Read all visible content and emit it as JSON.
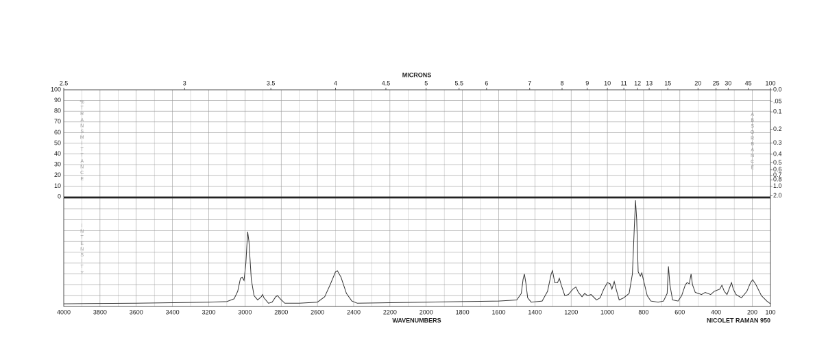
{
  "chart_data": {
    "type": "line",
    "top_axis_label": "MICRONS",
    "x_label": "WAVENUMBERS",
    "instrument": "NICOLET RAMAN 950",
    "left_label": "%TRANSMITTANCE",
    "right_label": "ABSORBANCE",
    "lower_label": "INTENSITY",
    "xlim": [
      4000,
      100
    ],
    "xticks": [
      4000,
      3800,
      3600,
      3400,
      3200,
      3000,
      2800,
      2600,
      2400,
      2200,
      2000,
      1800,
      1600,
      1400,
      1200,
      1000,
      800,
      600,
      400,
      200,
      100
    ],
    "micron_ticks": [
      2.5,
      3,
      3.5,
      4,
      4.5,
      5,
      5.5,
      6,
      7,
      8,
      9,
      10,
      11,
      12,
      13,
      15,
      20,
      25,
      30,
      45,
      100
    ],
    "ylim": [
      0,
      100
    ],
    "yticks": [
      100,
      90,
      80,
      70,
      60,
      50,
      40,
      30,
      20,
      10,
      0
    ],
    "absorbance_ticks": [
      {
        "value": 0,
        "label": "0.0"
      },
      {
        "value": 0.05,
        "label": ".05"
      },
      0.1,
      0.2,
      0.3,
      0.4,
      0.5,
      0.6,
      0.7,
      0.8,
      {
        "value": 1,
        "label": "1.0"
      },
      {
        "value": 2,
        "label": "2.0"
      }
    ],
    "intensity_lim": [
      0,
      100
    ],
    "intensity_grid": [
      0,
      10,
      20,
      30,
      40,
      50,
      60,
      70,
      80,
      90,
      100
    ],
    "grid": true,
    "color": "#333333",
    "x": [
      4000,
      3800,
      3600,
      3400,
      3200,
      3100,
      3060,
      3040,
      3025,
      3015,
      3005,
      2995,
      2985,
      2978,
      2965,
      2950,
      2930,
      2910,
      2903,
      2895,
      2870,
      2850,
      2830,
      2820,
      2805,
      2780,
      2700,
      2600,
      2560,
      2530,
      2500,
      2490,
      2470,
      2440,
      2410,
      2380,
      2200,
      2000,
      1800,
      1600,
      1500,
      1475,
      1465,
      1458,
      1450,
      1440,
      1420,
      1360,
      1330,
      1310,
      1303,
      1290,
      1275,
      1265,
      1255,
      1235,
      1215,
      1190,
      1174,
      1160,
      1140,
      1125,
      1110,
      1090,
      1060,
      1040,
      1020,
      1000,
      985,
      975,
      962,
      950,
      935,
      910,
      880,
      862,
      852,
      845,
      838,
      830,
      818,
      810,
      800,
      780,
      760,
      720,
      690,
      670,
      663,
      655,
      640,
      610,
      590,
      570,
      560,
      548,
      538,
      530,
      515,
      480,
      460,
      430,
      410,
      380,
      368,
      355,
      340,
      315,
      305,
      290,
      260,
      230,
      210,
      198,
      180,
      150,
      120,
      100
    ],
    "values": [
      2.5,
      2.8,
      3,
      3.5,
      4,
      4.5,
      7,
      14,
      26,
      27,
      24,
      40,
      69,
      60,
      25,
      10,
      6,
      9,
      11,
      8,
      3,
      4,
      9,
      10,
      7,
      3,
      3,
      4,
      9,
      20,
      32,
      33,
      27,
      12,
      5,
      3,
      3.5,
      4,
      4.5,
      5,
      6,
      12,
      25,
      30,
      22,
      8,
      4,
      5,
      14,
      30,
      33,
      22,
      22,
      26,
      20,
      10,
      11,
      16,
      18,
      13,
      9,
      12,
      10,
      11,
      6,
      8,
      16,
      22,
      21,
      16,
      23,
      15,
      6,
      8,
      12,
      30,
      70,
      98,
      80,
      32,
      28,
      31,
      24,
      10,
      5,
      4,
      5,
      12,
      37,
      20,
      6,
      5,
      10,
      20,
      22,
      21,
      30,
      20,
      13,
      11,
      13,
      11,
      14,
      16,
      19.6,
      14,
      11,
      22,
      16,
      11,
      8,
      14,
      22,
      24.7,
      20,
      10,
      5,
      2.5
    ]
  }
}
